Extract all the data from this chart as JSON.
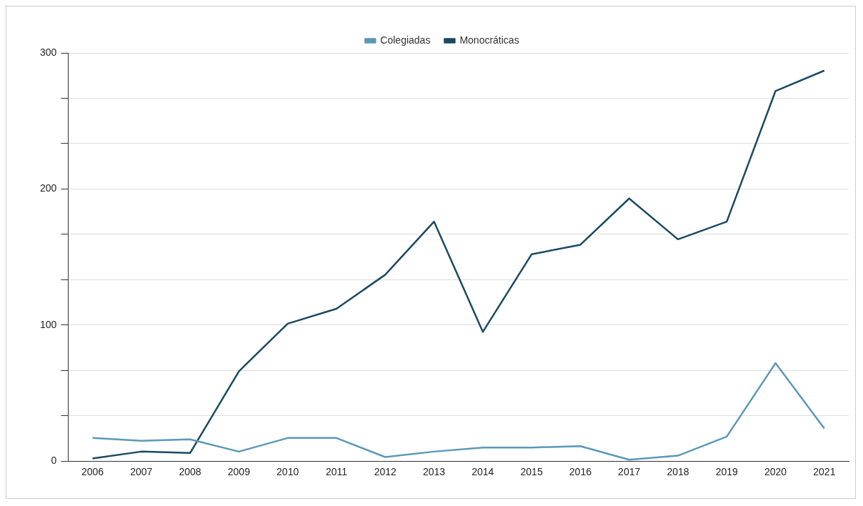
{
  "chart_data": {
    "type": "line",
    "categories": [
      "2006",
      "2007",
      "2008",
      "2009",
      "2010",
      "2011",
      "2012",
      "2013",
      "2014",
      "2015",
      "2016",
      "2017",
      "2018",
      "2019",
      "2020",
      "2021"
    ],
    "series": [
      {
        "name": "Colegiadas",
        "color": "#5b98b9",
        "values": [
          17,
          15,
          16,
          7,
          17,
          17,
          3,
          7,
          10,
          10,
          11,
          1,
          4,
          18,
          72,
          24
        ]
      },
      {
        "name": "Monocráticas",
        "color": "#1b4a63",
        "values": [
          2,
          7,
          6,
          66,
          101,
          112,
          137,
          176,
          95,
          152,
          159,
          193,
          163,
          176,
          272,
          287
        ]
      }
    ],
    "ylim": [
      0,
      300
    ],
    "yticks": [
      0,
      {
        "value": 33.333,
        "label": null
      },
      {
        "value": 66.667,
        "label": null
      },
      100,
      {
        "value": 133.333,
        "label": null
      },
      {
        "value": 166.667,
        "label": null
      },
      200,
      {
        "value": 233.333,
        "label": null
      },
      {
        "value": 266.667,
        "label": null
      },
      300
    ],
    "grid": "y",
    "legend": "top",
    "marker": "none",
    "line_style": "solid"
  }
}
